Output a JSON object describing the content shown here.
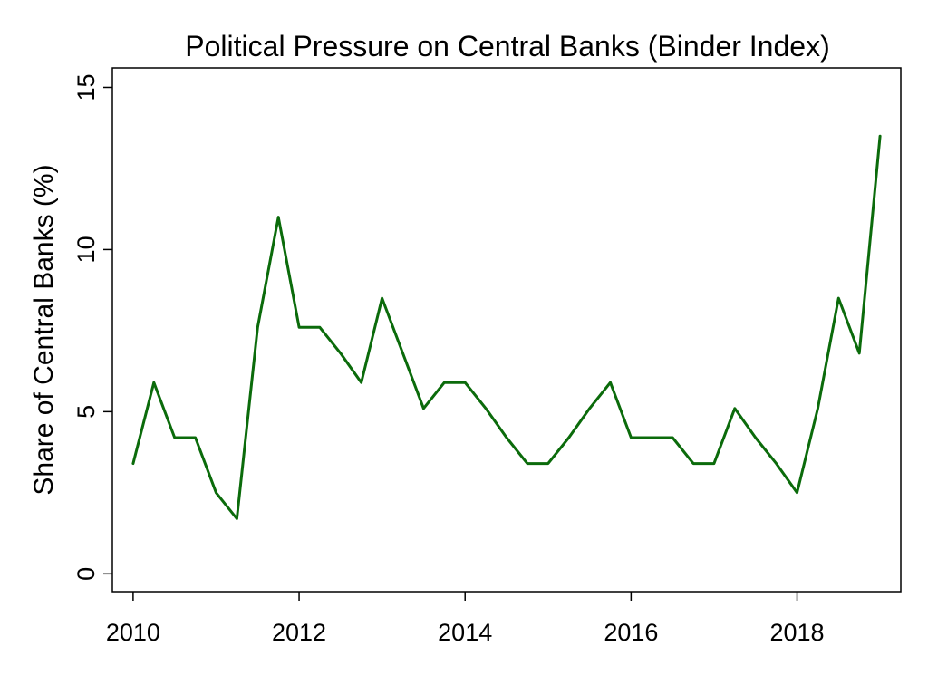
{
  "chart_data": {
    "type": "line",
    "title": "Political Pressure on Central Banks (Binder Index)",
    "xlabel": "",
    "ylabel": "Share of Central Banks (%)",
    "xlim": [
      2009.75,
      2019.25
    ],
    "ylim": [
      -0.55,
      15.6
    ],
    "xticks": [
      2010,
      2012,
      2014,
      2016,
      2018
    ],
    "yticks": [
      0,
      5,
      10,
      15
    ],
    "grid": false,
    "line_color": "#0b6b0b",
    "series": [
      {
        "x": [
          2010.0,
          2010.25,
          2010.5,
          2010.75,
          2011.0,
          2011.25,
          2011.5,
          2011.75,
          2012.0,
          2012.25,
          2012.5,
          2012.75,
          2013.0,
          2013.25,
          2013.5,
          2013.75,
          2014.0,
          2014.25,
          2014.5,
          2014.75,
          2015.0,
          2015.25,
          2015.5,
          2015.75,
          2016.0,
          2016.25,
          2016.5,
          2016.75,
          2017.0,
          2017.25,
          2017.5,
          2017.75,
          2018.0,
          2018.25,
          2018.5,
          2018.75,
          2019.0
        ],
        "y": [
          3.4,
          5.9,
          4.2,
          4.2,
          2.5,
          1.7,
          7.6,
          11.0,
          7.6,
          7.6,
          6.8,
          5.9,
          8.5,
          6.8,
          5.1,
          5.9,
          5.9,
          5.1,
          4.2,
          3.4,
          3.4,
          4.2,
          5.1,
          5.9,
          4.2,
          4.2,
          4.2,
          3.4,
          3.4,
          5.1,
          4.2,
          3.4,
          2.5,
          5.1,
          8.5,
          6.8,
          13.5
        ]
      }
    ]
  }
}
